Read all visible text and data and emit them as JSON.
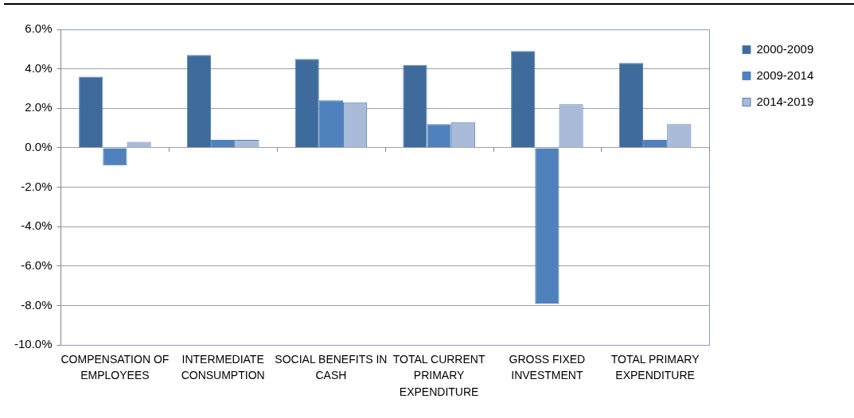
{
  "chart_data": {
    "type": "bar",
    "categories": [
      "COMPENSATION OF EMPLOYEES",
      "INTERMEDIATE CONSUMPTION",
      "SOCIAL BENEFITS IN CASH",
      "TOTAL CURRENT PRIMARY EXPENDITURE",
      "GROSS FIXED INVESTMENT",
      "TOTAL PRIMARY EXPENDITURE"
    ],
    "series": [
      {
        "name": "2000-2009",
        "color": "#3f6a9c",
        "values": [
          3.6,
          4.7,
          4.5,
          4.2,
          4.9,
          4.3
        ]
      },
      {
        "name": "2009-2014",
        "color": "#4f81bd",
        "values": [
          -0.9,
          0.4,
          2.4,
          1.2,
          -7.9,
          0.4
        ]
      },
      {
        "name": "2014-2019",
        "color": "#aabbd9",
        "values": [
          0.3,
          0.4,
          2.3,
          1.3,
          2.2,
          1.2
        ]
      }
    ],
    "ylim": [
      -10,
      6
    ],
    "yticks": [
      {
        "value": -10,
        "label": "-10.0%"
      },
      {
        "value": -8,
        "label": "-8.0%"
      },
      {
        "value": -6,
        "label": "-6.0%"
      },
      {
        "value": -4,
        "label": "-4.0%"
      },
      {
        "value": -2,
        "label": "-2.0%"
      },
      {
        "value": 0,
        "label": "0.0%"
      },
      {
        "value": 2,
        "label": "2.0%"
      },
      {
        "value": 4,
        "label": "4.0%"
      },
      {
        "value": 6,
        "label": "6.0%"
      }
    ],
    "grid": "y",
    "legend": "top right"
  }
}
